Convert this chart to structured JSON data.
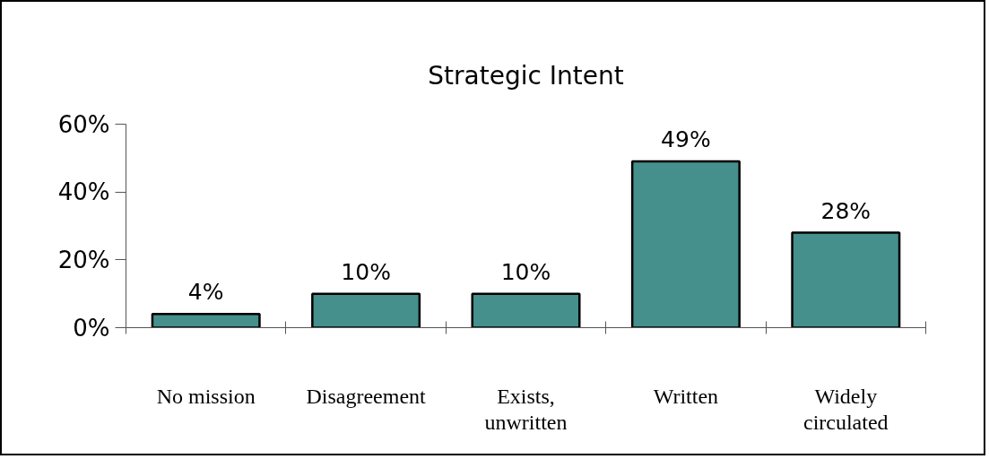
{
  "chart_data": {
    "type": "bar",
    "title": "Strategic Intent",
    "categories": [
      "No mission",
      "Disagreement",
      "Exists,\nunwritten",
      "Written",
      "Widely\ncirculated"
    ],
    "values": [
      4,
      10,
      10,
      49,
      28
    ],
    "color": "#458f8c",
    "value_labels": [
      "4%",
      "10%",
      "10%",
      "49%",
      "28%"
    ],
    "ylim": [
      0,
      60
    ],
    "yticks": [
      {
        "value": 0,
        "label": "0%"
      },
      {
        "value": 20,
        "label": "20%"
      },
      {
        "value": 40,
        "label": "40%"
      },
      {
        "value": 60,
        "label": "60%"
      }
    ],
    "grid": false
  }
}
